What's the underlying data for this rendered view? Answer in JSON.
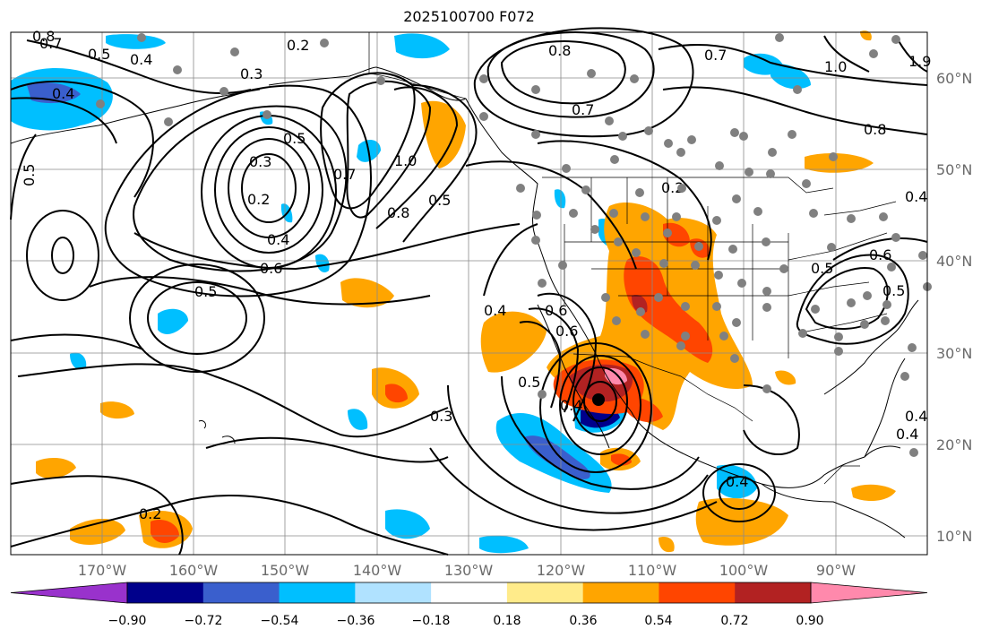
{
  "title": "2025100700 F072",
  "lon_labels": [
    "170°W",
    "160°W",
    "150°W",
    "140°W",
    "130°W",
    "120°W",
    "110°W",
    "100°W",
    "90°W"
  ],
  "lat_labels": [
    "60°N",
    "50°N",
    "40°N",
    "30°N",
    "20°N",
    "10°N"
  ],
  "colorbar": {
    "ticks": [
      "−0.90",
      "−0.72",
      "−0.54",
      "−0.36",
      "−0.18",
      "0.18",
      "0.36",
      "0.54",
      "0.72",
      "0.90"
    ],
    "colors": [
      "#9932cc",
      "#00008b",
      "#3a5fcd",
      "#00bfff",
      "#b0e2ff",
      "#ffffff",
      "#ffeb8a",
      "#ffa500",
      "#ff4500",
      "#b22222",
      "#ff89ac"
    ]
  },
  "contour_labels": [
    {
      "text": "0.8"
    },
    {
      "text": "0.7"
    },
    {
      "text": "0.5"
    },
    {
      "text": "0.4"
    },
    {
      "text": "0.2"
    },
    {
      "text": "0.3"
    },
    {
      "text": "0.4"
    },
    {
      "text": "0.5"
    },
    {
      "text": "0.5"
    },
    {
      "text": "0.3"
    },
    {
      "text": "0.2"
    },
    {
      "text": "0.4"
    },
    {
      "text": "0.6"
    },
    {
      "text": "0.5"
    },
    {
      "text": "0.7"
    },
    {
      "text": "1.0"
    },
    {
      "text": "0.8"
    },
    {
      "text": "0.5"
    },
    {
      "text": "0.8"
    },
    {
      "text": "0.7"
    },
    {
      "text": "0.7"
    },
    {
      "text": "1.0"
    },
    {
      "text": "0.8"
    },
    {
      "text": "1.9"
    },
    {
      "text": "0.2"
    },
    {
      "text": "0.4"
    },
    {
      "text": "0.4"
    },
    {
      "text": "0.6"
    },
    {
      "text": "0.5"
    },
    {
      "text": "0.4"
    },
    {
      "text": "0.5"
    },
    {
      "text": "0.3"
    },
    {
      "text": "0.6"
    },
    {
      "text": "0.4"
    },
    {
      "text": "0.2"
    },
    {
      "text": "0.4"
    },
    {
      "text": "0.5"
    },
    {
      "text": "0.4"
    },
    {
      "text": "0.6"
    }
  ]
}
